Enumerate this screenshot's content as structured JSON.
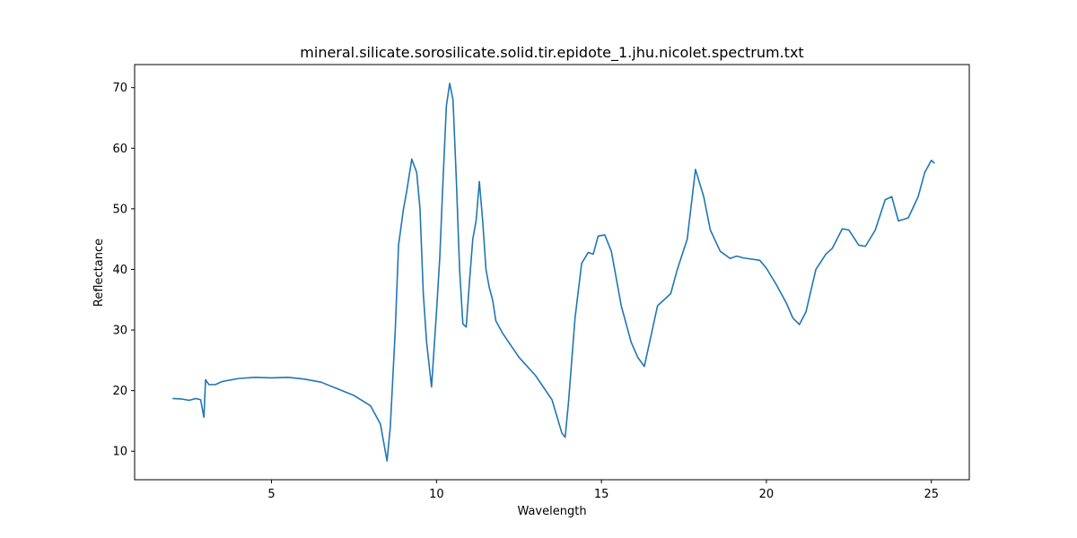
{
  "chart_data": {
    "type": "line",
    "title": "mineral.silicate.sorosilicate.solid.tir.epidote_1.jhu.nicolet.spectrum.txt",
    "x_label": "Wavelength",
    "y_label": "Reflectance",
    "xlim": [
      0.85,
      26.15
    ],
    "ylim": [
      5.3,
      73.8
    ],
    "xticks": [
      5,
      10,
      15,
      20,
      25
    ],
    "yticks": [
      10,
      20,
      30,
      40,
      50,
      60,
      70
    ],
    "series": [
      {
        "color": "#1f77b4",
        "x": [
          2.0,
          2.3,
          2.5,
          2.7,
          2.85,
          2.95,
          3.0,
          3.1,
          3.3,
          3.5,
          4.0,
          4.5,
          5.0,
          5.5,
          6.0,
          6.5,
          7.0,
          7.5,
          8.0,
          8.3,
          8.5,
          8.6,
          8.75,
          8.85,
          9.0,
          9.1,
          9.25,
          9.4,
          9.5,
          9.6,
          9.7,
          9.85,
          10.0,
          10.1,
          10.2,
          10.3,
          10.4,
          10.5,
          10.6,
          10.7,
          10.8,
          10.9,
          11.0,
          11.1,
          11.2,
          11.3,
          11.4,
          11.5,
          11.6,
          11.7,
          11.8,
          12.0,
          12.5,
          13.0,
          13.5,
          13.8,
          13.9,
          14.0,
          14.2,
          14.4,
          14.6,
          14.75,
          14.9,
          15.1,
          15.3,
          15.6,
          15.9,
          16.1,
          16.3,
          16.5,
          16.7,
          16.9,
          17.1,
          17.3,
          17.6,
          17.85,
          18.1,
          18.3,
          18.6,
          18.9,
          19.1,
          19.3,
          19.8,
          20.0,
          20.3,
          20.6,
          20.8,
          21.0,
          21.2,
          21.5,
          21.8,
          22.0,
          22.3,
          22.5,
          22.8,
          23.0,
          23.3,
          23.6,
          23.8,
          24.0,
          24.3,
          24.6,
          24.8,
          25.0,
          25.1
        ],
        "values": [
          18.7,
          18.6,
          18.4,
          18.7,
          18.5,
          15.6,
          21.8,
          21.0,
          21.0,
          21.5,
          22.0,
          22.2,
          22.1,
          22.2,
          21.9,
          21.4,
          20.3,
          19.2,
          17.5,
          14.5,
          8.4,
          14,
          30,
          44,
          50,
          53,
          58.2,
          56,
          50,
          36,
          28,
          20.6,
          33,
          42,
          55,
          67,
          70.7,
          68,
          55,
          40,
          31,
          30.5,
          38,
          45,
          48,
          54.5,
          48,
          40,
          37,
          35,
          31.5,
          29.5,
          25.5,
          22.5,
          18.5,
          13,
          12.3,
          18,
          32,
          41,
          42.8,
          42.5,
          45.5,
          45.7,
          43,
          34,
          28,
          25.5,
          24,
          29,
          34,
          35,
          36,
          40,
          45,
          56.5,
          52,
          46.5,
          43,
          41.8,
          42.2,
          41.9,
          41.5,
          40.2,
          37.5,
          34.5,
          32,
          30.9,
          33,
          40,
          42.5,
          43.5,
          46.7,
          46.5,
          44,
          43.8,
          46.5,
          51.5,
          52,
          48,
          48.5,
          52,
          56,
          58,
          57.5
        ]
      }
    ]
  }
}
